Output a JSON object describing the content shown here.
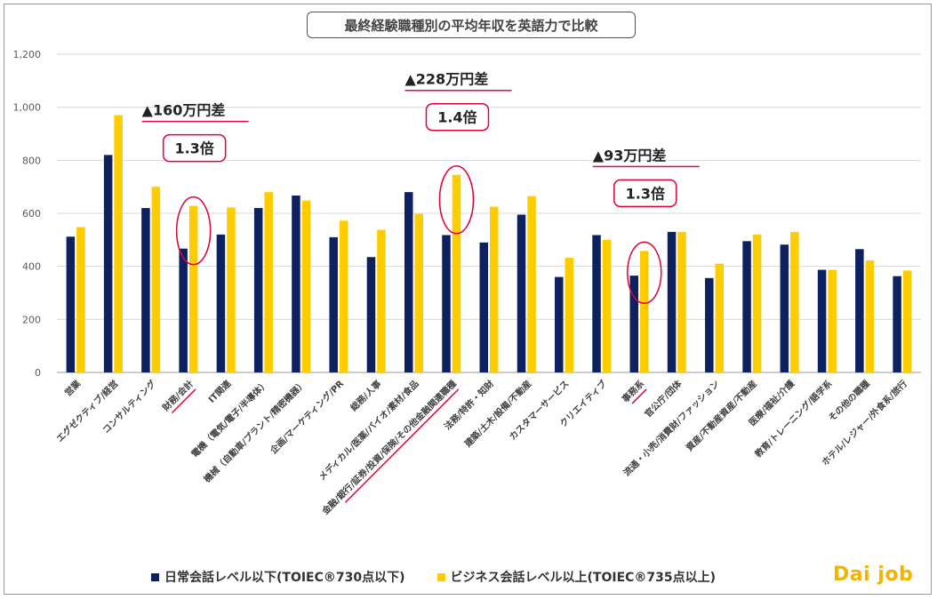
{
  "chart_data": {
    "type": "bar",
    "title": "最終経験職種別の平均年収を英語力で比較",
    "ylim": [
      0,
      1200
    ],
    "yticks": [
      0,
      200,
      400,
      600,
      800,
      1000,
      1200
    ],
    "ytick_labels": [
      "0",
      "200",
      "400",
      "600",
      "800",
      "1,000",
      "1,200"
    ],
    "grid": true,
    "legend_position": "bottom",
    "categories": [
      "営業",
      "エグゼクティブ/経営",
      "コンサルティング",
      "財務/会計",
      "IT関連",
      "電機（電気/電子/半導体）",
      "機械（自動車/プラント/精密機器）",
      "企画/マーケティング/PR",
      "総務/人事",
      "メディカル/医薬/バイオ/素材/食品",
      "金融/銀行/証券/投資/保険/その他金融関連職種",
      "法務/特許・知財",
      "建築/土木/設備/不動産",
      "カスタマーサービス",
      "クリエイティブ",
      "事務系",
      "官公庁/団体",
      "流通・小売/消費財/ファッション",
      "資産/不動産資産/不動産",
      "医療/福祉/介護",
      "教育/トレーニング/語学系",
      "その他の職種",
      "ホテル/レジャー/外食系/旅行"
    ],
    "series": [
      {
        "name": "日常会話レベル以下(TOIEC®730点以下)",
        "color": "#0d2160",
        "values": [
          512,
          820,
          620,
          467,
          520,
          620,
          667,
          510,
          435,
          680,
          518,
          490,
          595,
          360,
          518,
          365,
          530,
          356,
          495,
          482,
          387,
          465,
          363
        ]
      },
      {
        "name": "ビジネス会話レベル以上(TOIEC®735点以上)",
        "color": "#ffcc00",
        "values": [
          548,
          970,
          700,
          628,
          622,
          680,
          648,
          572,
          538,
          598,
          745,
          625,
          665,
          432,
          500,
          458,
          530,
          410,
          520,
          530,
          387,
          422,
          384
        ]
      }
    ],
    "annotations": [
      {
        "category_index": 3,
        "diff_text": "▲160万円差",
        "ratio_text": "1.3倍"
      },
      {
        "category_index": 10,
        "diff_text": "▲228万円差",
        "ratio_text": "1.4倍"
      },
      {
        "category_index": 15,
        "diff_text": "▲93万円差",
        "ratio_text": "1.3倍"
      }
    ]
  },
  "legend": {
    "item1": "日常会話レベル以下(TOIEC®730点以下)",
    "item2": "ビジネス会話レベル以上(TOIEC®735点以上)"
  },
  "logo": "Dai job",
  "colors": {
    "series1": "#0d2160",
    "series2": "#ffcc00",
    "highlight": "#e0003a",
    "diff_marker": "#e8005a"
  }
}
